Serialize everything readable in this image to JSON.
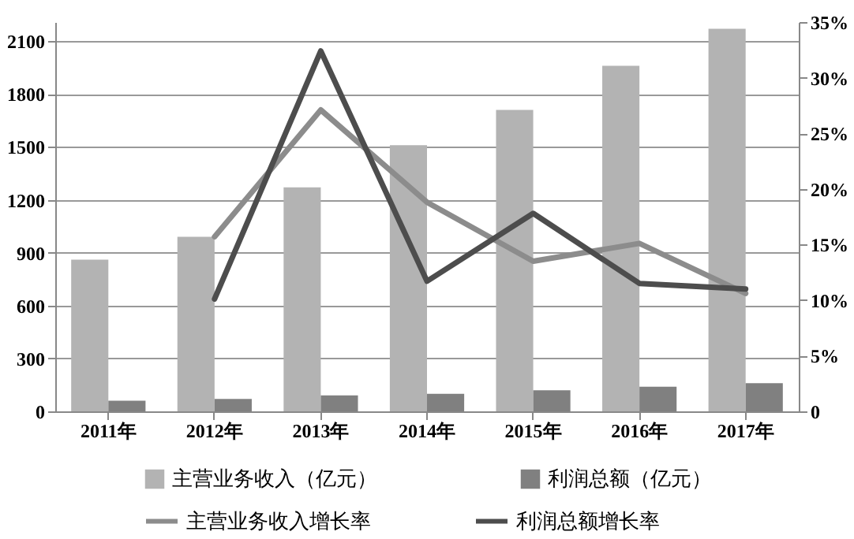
{
  "chart_data": {
    "type": "bar",
    "categories": [
      "2011年",
      "2012年",
      "2013年",
      "2014年",
      "2015年",
      "2016年",
      "2017年"
    ],
    "series": [
      {
        "name": "主营业务收入（亿元）",
        "color": "#b3b3b3",
        "values": [
          860,
          990,
          1270,
          1510,
          1710,
          1960,
          2170
        ]
      },
      {
        "name": "利润总额（亿元）",
        "color": "#808080",
        "values": [
          60,
          70,
          90,
          100,
          120,
          140,
          160
        ]
      },
      {
        "name": "主营业务收入增长率",
        "type": "line",
        "axis": "y2",
        "color": "#8c8c8c",
        "values": [
          null,
          15.7,
          27.1,
          18.8,
          13.5,
          15.1,
          10.6
        ]
      },
      {
        "name": "利润总额增长率",
        "type": "line",
        "axis": "y2",
        "color": "#4d4d4d",
        "values": [
          null,
          10.1,
          32.4,
          11.7,
          17.8,
          11.5,
          11.0
        ]
      }
    ],
    "ylim": [
      0,
      2208
    ],
    "yticks": [
      0,
      300,
      600,
      900,
      1200,
      1500,
      1800,
      2100
    ],
    "y2lim": [
      0,
      35
    ],
    "y2ticks": [
      0,
      {
        "value": 5,
        "label": "5%"
      },
      {
        "value": 10,
        "label": "10%"
      },
      {
        "value": 15,
        "label": "15%"
      },
      {
        "value": 20,
        "label": "20%"
      },
      {
        "value": 25,
        "label": "25%"
      },
      {
        "value": 30,
        "label": "30%"
      },
      {
        "value": 35,
        "label": "35%"
      }
    ],
    "grid": "y",
    "legend": "bottom"
  }
}
